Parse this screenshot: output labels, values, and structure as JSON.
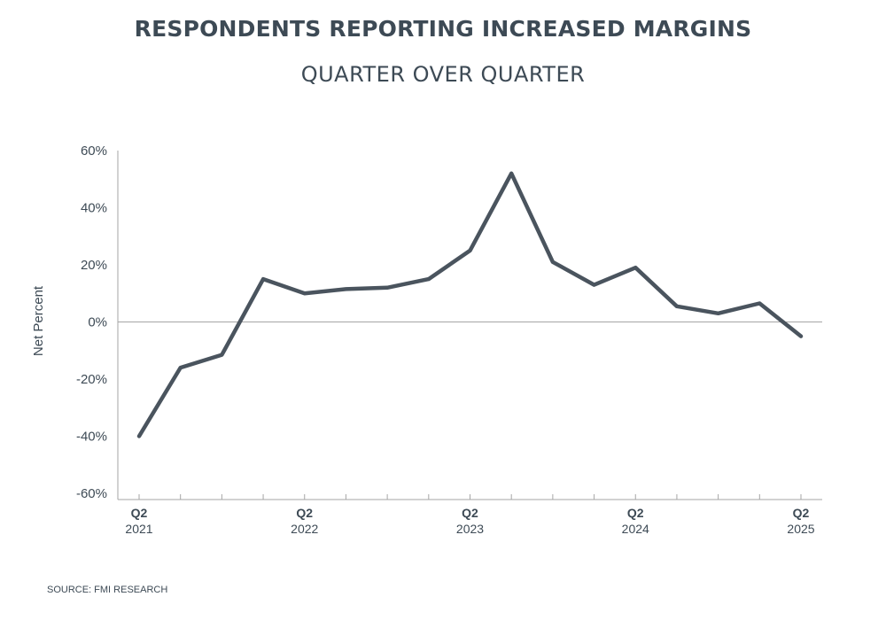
{
  "source": "SOURCE: FMI RESEARCH",
  "chart_data": {
    "type": "line",
    "title": "RESPONDENTS REPORTING INCREASED MARGINS",
    "subtitle": "QUARTER OVER QUARTER",
    "xlabel": "",
    "ylabel": "Net Percent",
    "ylim": [
      -60,
      60
    ],
    "yticks": [
      60,
      40,
      20,
      0,
      -20,
      -40,
      -60
    ],
    "ytick_labels": [
      "60%",
      "40%",
      "20%",
      "0%",
      "-20%",
      "-40%",
      "-60%"
    ],
    "x": [
      "Q2 2021",
      "Q3 2021",
      "Q4 2021",
      "Q1 2022",
      "Q2 2022",
      "Q3 2022",
      "Q4 2022",
      "Q1 2023",
      "Q2 2023",
      "Q3 2023",
      "Q4 2023",
      "Q1 2024",
      "Q2 2024",
      "Q3 2024",
      "Q4 2024",
      "Q1 2025",
      "Q2 2025"
    ],
    "x_tick_labels": [
      {
        "index": 0,
        "quarter": "Q2",
        "year": "2021"
      },
      {
        "index": 4,
        "quarter": "Q2",
        "year": "2022"
      },
      {
        "index": 8,
        "quarter": "Q2",
        "year": "2023"
      },
      {
        "index": 12,
        "quarter": "Q2",
        "year": "2024"
      },
      {
        "index": 16,
        "quarter": "Q2",
        "year": "2025"
      }
    ],
    "series": [
      {
        "name": "Net Percent",
        "color": "#4a545e",
        "values": [
          -40,
          -16,
          -11.5,
          15,
          10,
          11.5,
          12,
          15,
          25,
          52,
          21,
          13,
          19,
          5.5,
          3,
          6.5,
          -5
        ]
      }
    ],
    "colors": {
      "line": "#4a545e",
      "axis": "#a6a6a6",
      "text": "#3d4a55"
    },
    "grid": false
  }
}
